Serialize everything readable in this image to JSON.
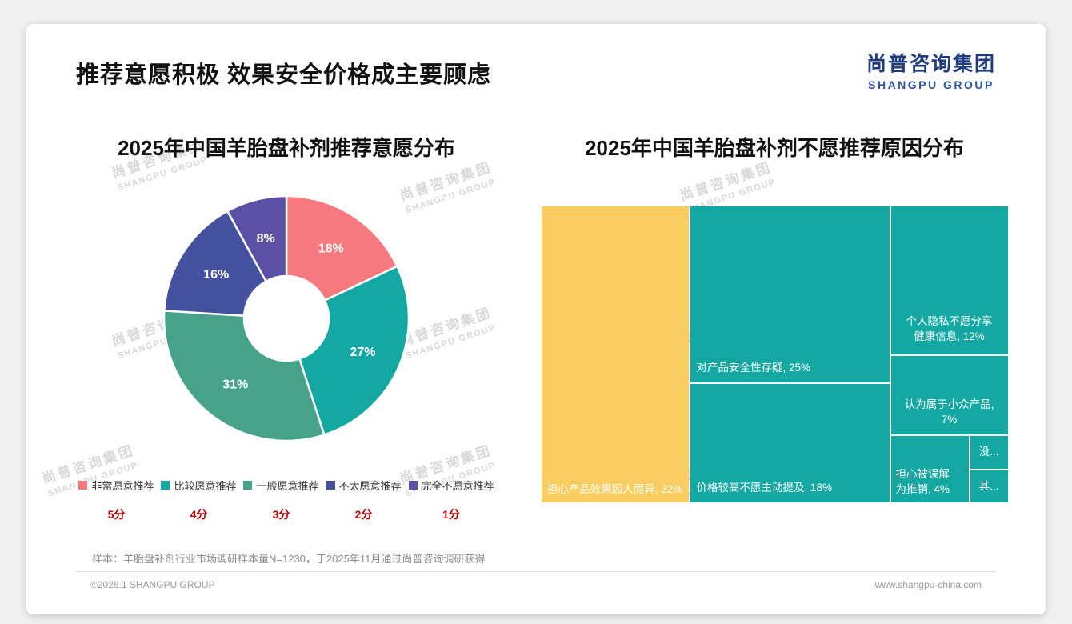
{
  "page": {
    "title": "推荐意愿积极 效果安全价格成主要顾虑",
    "logo": {
      "cn": "尚普咨询集团",
      "en": "SHANGPU GROUP"
    },
    "watermark": {
      "cn": "尚普咨询集团",
      "en": "SHANGPU GROUP"
    },
    "footnote": "样本：羊胎盘补剂行业市场调研样本量N=1230，于2025年11月通过尚普咨询调研获得",
    "footer": {
      "left": "©2026.1 SHANGPU GROUP",
      "right": "www.shangpu-china.com"
    }
  },
  "chart_data": [
    {
      "type": "pie",
      "donut": true,
      "title": "2025年中国羊胎盘补剂推荐意愿分布",
      "categories": [
        "非常愿意推荐",
        "比较愿意推荐",
        "一般愿意推荐",
        "不太愿意推荐",
        "完全不愿意推荐"
      ],
      "values": [
        18,
        27,
        31,
        16,
        8
      ],
      "labels": [
        "18%",
        "27%",
        "31%",
        "16%",
        "8%"
      ],
      "scores": [
        "5分",
        "4分",
        "3分",
        "2分",
        "1分"
      ],
      "colors": [
        "#F5797F",
        "#14A8A3",
        "#46A389",
        "#44519E",
        "#5B50A5"
      ],
      "legend_position": "bottom",
      "start_angle_deg": 0,
      "direction": "clockwise"
    },
    {
      "type": "treemap",
      "title": "2025年中国羊胎盘补剂不愿推荐原因分布",
      "items": [
        {
          "label": "担心产品效果因人而异",
          "value": 32,
          "display": "担心产品效果因人而异, 32%",
          "color": "#FACD60"
        },
        {
          "label": "对产品安全性存疑",
          "value": 25,
          "display": "对产品安全性存疑, 25%",
          "color": "#14A8A3"
        },
        {
          "label": "价格较高不愿主动提及",
          "value": 18,
          "display": "价格较高不愿主动提及, 18%",
          "color": "#14A8A3"
        },
        {
          "label": "个人隐私不愿分享健康信息",
          "value": 12,
          "display": "个人隐私不愿分享健康信息, 12%",
          "color": "#14A8A3"
        },
        {
          "label": "认为属于小众产品",
          "value": 7,
          "display": "认为属于小众产品, 7%",
          "color": "#14A8A3"
        },
        {
          "label": "担心被误解为推销",
          "value": 4,
          "display": "担心被误解为推销, 4%",
          "color": "#14A8A3"
        },
        {
          "label": "没...",
          "display": "没...",
          "color": "#14A8A3"
        },
        {
          "label": "其...",
          "display": "其...",
          "color": "#14A8A3"
        }
      ]
    }
  ]
}
